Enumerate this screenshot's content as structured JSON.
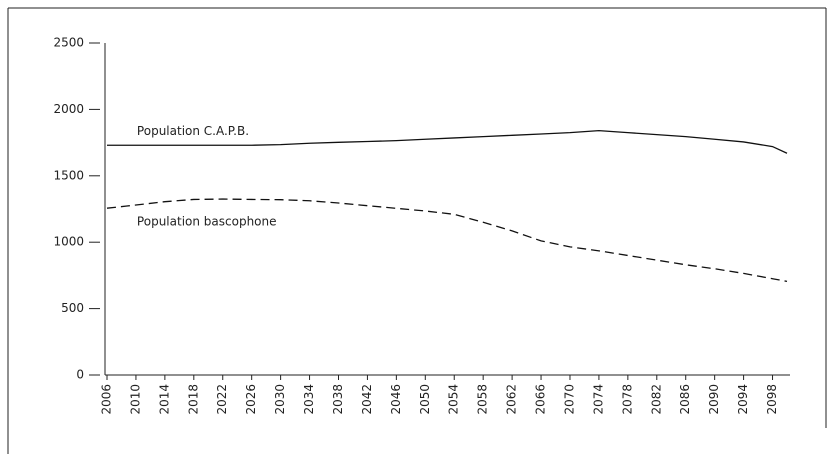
{
  "chart_data": {
    "type": "line",
    "x": [
      2006,
      2010,
      2014,
      2018,
      2022,
      2026,
      2030,
      2034,
      2038,
      2042,
      2046,
      2050,
      2054,
      2058,
      2062,
      2066,
      2070,
      2074,
      2078,
      2082,
      2086,
      2090,
      2094,
      2098,
      2100
    ],
    "series": [
      {
        "name": "Population C.A.P.B.",
        "color": "#111111",
        "dashed": false,
        "values": [
          1730,
          1730,
          1730,
          1730,
          1730,
          1730,
          1735,
          1745,
          1752,
          1758,
          1765,
          1775,
          1785,
          1795,
          1805,
          1815,
          1825,
          1840,
          1825,
          1810,
          1795,
          1775,
          1755,
          1720,
          1670
        ]
      },
      {
        "name": "Population bascophone",
        "color": "#111111",
        "dashed": true,
        "values": [
          1256,
          1280,
          1305,
          1322,
          1325,
          1322,
          1320,
          1312,
          1295,
          1275,
          1255,
          1235,
          1210,
          1150,
          1085,
          1010,
          965,
          935,
          900,
          865,
          830,
          800,
          765,
          725,
          705
        ]
      }
    ],
    "xlim": [
      2006,
      2100
    ],
    "xticks": [
      2006,
      2010,
      2014,
      2018,
      2022,
      2026,
      2030,
      2034,
      2038,
      2042,
      2046,
      2050,
      2054,
      2058,
      2062,
      2066,
      2070,
      2074,
      2078,
      2082,
      2086,
      2090,
      2094,
      2098
    ],
    "ylim": [
      0,
      2500
    ],
    "yticks": [
      0,
      500,
      1000,
      1500,
      2000,
      2500
    ]
  }
}
